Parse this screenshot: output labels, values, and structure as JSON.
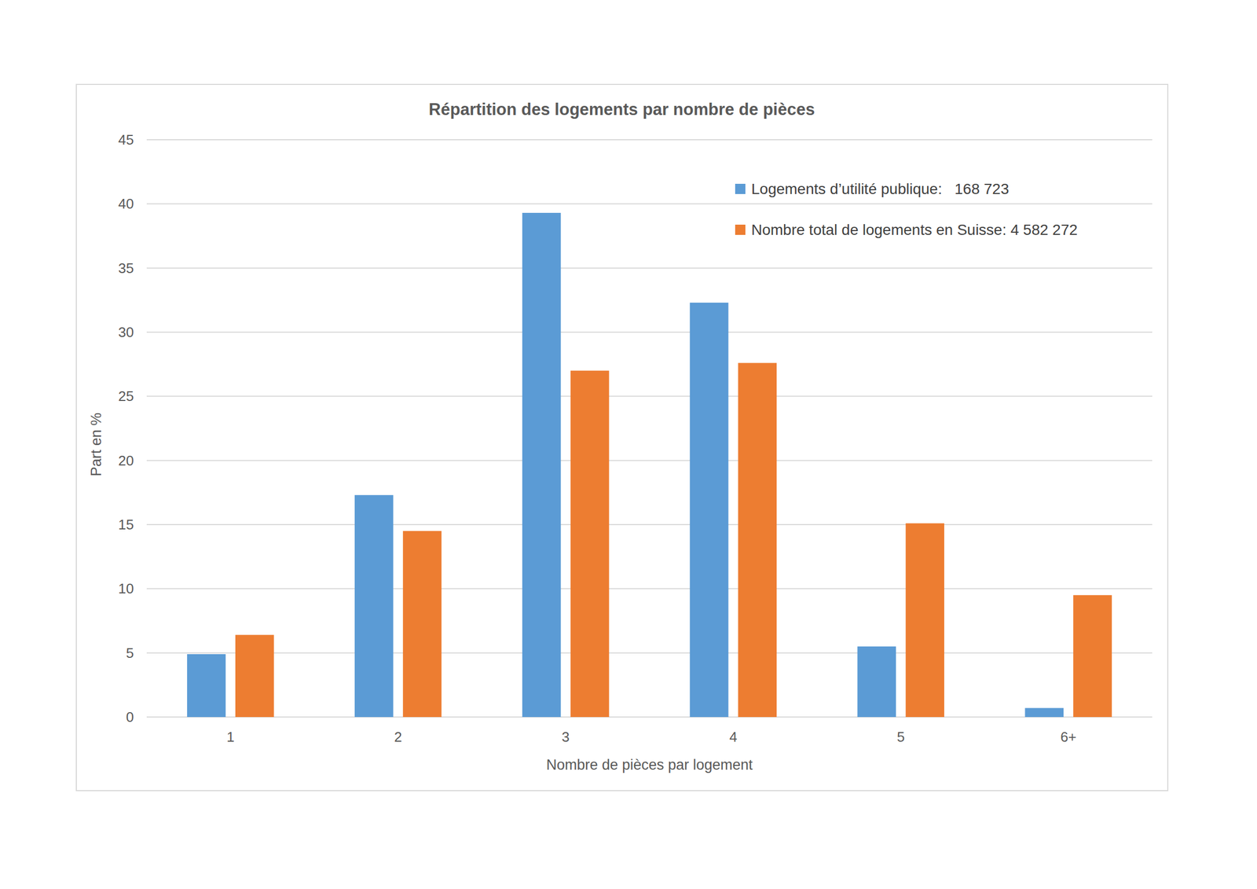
{
  "chart_data": {
    "type": "bar",
    "title": "Répartition des logements par nombre de pièces",
    "x_label": "Nombre de pièces par logement",
    "y_label": "Part en %",
    "categories": [
      "1",
      "2",
      "3",
      "4",
      "5",
      "6+"
    ],
    "series": [
      {
        "name": "Logements d’utilité publique:   168 723",
        "color": "#5b9bd5",
        "values": [
          4.9,
          17.3,
          39.3,
          32.3,
          5.5,
          0.7
        ]
      },
      {
        "name": "Nombre total de logements en Suisse: 4 582 272",
        "color": "#ed7d31",
        "values": [
          6.4,
          14.5,
          27.0,
          27.6,
          15.1,
          9.5
        ]
      }
    ],
    "ylim": [
      0,
      45
    ],
    "yticks": [
      0,
      5,
      10,
      15,
      20,
      25,
      30,
      35,
      40,
      45
    ],
    "grid": true,
    "legend": "upper right"
  }
}
